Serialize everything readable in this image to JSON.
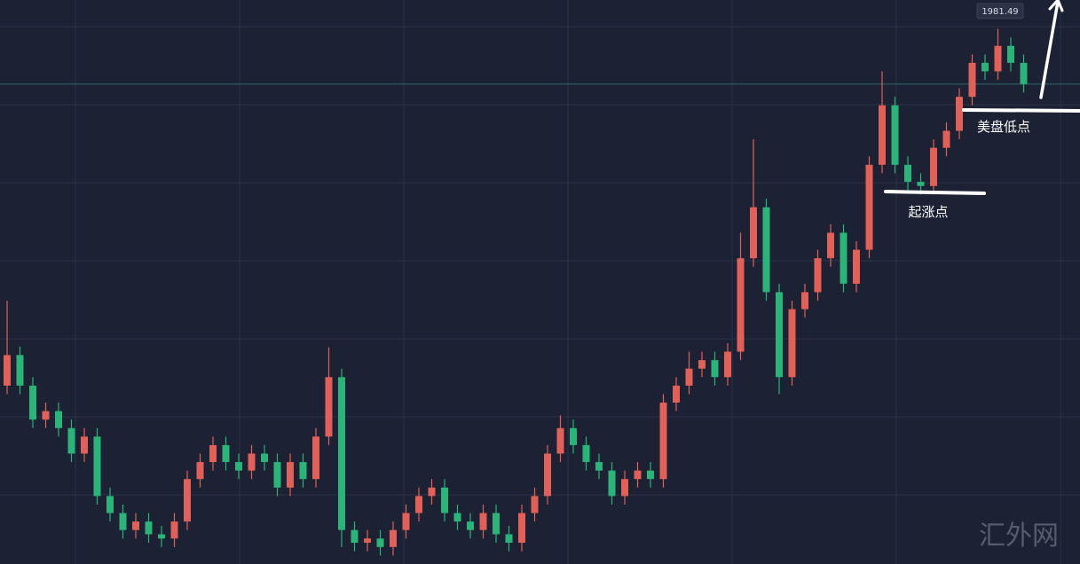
{
  "chart_data": {
    "type": "candlestick",
    "ylim": [
      1925,
      1991.4
    ],
    "price_line": 1981.49,
    "up_color": "#e0605a",
    "down_color": "#2bb37a",
    "annotations": [
      "起涨点",
      "美盘低点"
    ],
    "watermark": "汇外网",
    "open": [
      1946,
      1949.6,
      1946,
      1942,
      1943,
      1941,
      1938,
      1940,
      1933,
      1931,
      1929,
      1930,
      1928.5,
      1928,
      1930,
      1935,
      1937,
      1939,
      1937,
      1936,
      1938,
      1937,
      1934,
      1937,
      1935,
      1940,
      1947,
      1929,
      1927.5,
      1928,
      1927,
      1929,
      1931,
      1933,
      1934,
      1931,
      1930,
      1929,
      1931,
      1928.5,
      1927.5,
      1931,
      1933,
      1938,
      1941,
      1939,
      1937,
      1936,
      1933,
      1935,
      1936,
      1935,
      1944,
      1946,
      1948,
      1949,
      1947,
      1950,
      1961,
      1967,
      1957,
      1947,
      1955,
      1957,
      1961,
      1964,
      1958,
      1962,
      1972,
      1979,
      1972,
      1970,
      1969.5,
      1974,
      1976,
      1980,
      1984,
      1983,
      1986,
      1984
    ],
    "high": [
      1956,
      1950.6,
      1947,
      1944,
      1944,
      1942,
      1941,
      1941,
      1934,
      1932,
      1931,
      1931,
      1929.5,
      1931,
      1936,
      1938,
      1940,
      1940,
      1938,
      1939,
      1939,
      1938,
      1938,
      1938,
      1941,
      1950.5,
      1948,
      1930,
      1929,
      1929,
      1930,
      1932,
      1934,
      1935,
      1935,
      1932,
      1931,
      1932,
      1932,
      1929.5,
      1932,
      1934,
      1939,
      1942.5,
      1942,
      1940,
      1938,
      1937,
      1936,
      1937,
      1937,
      1945,
      1947,
      1950,
      1950,
      1950,
      1951,
      1964,
      1975,
      1968,
      1958,
      1956,
      1958,
      1962,
      1965,
      1965,
      1963,
      1973,
      1983,
      1980,
      1973,
      1971,
      1975,
      1977,
      1981,
      1985,
      1985,
      1988,
      1987,
      1985
    ],
    "low": [
      1945,
      1945,
      1941,
      1941,
      1940,
      1937,
      1937,
      1932,
      1930,
      1928,
      1928,
      1927.5,
      1927,
      1927,
      1929,
      1934,
      1936,
      1936,
      1935,
      1935,
      1936,
      1933,
      1933,
      1934,
      1934,
      1939,
      1927,
      1926.5,
      1926.5,
      1926,
      1926,
      1928,
      1930,
      1932,
      1930,
      1929,
      1928,
      1928,
      1927.5,
      1926.5,
      1926.5,
      1930,
      1932,
      1937,
      1938,
      1936,
      1935,
      1932,
      1932,
      1934,
      1934,
      1934,
      1943,
      1945,
      1947,
      1946,
      1946,
      1949,
      1960,
      1956,
      1945,
      1946,
      1954,
      1956,
      1960,
      1957,
      1957,
      1961,
      1971,
      1971,
      1969,
      1968.5,
      1968.5,
      1973,
      1975,
      1979,
      1982,
      1982,
      1983,
      1980.5
    ],
    "close": [
      1949.6,
      1946,
      1942,
      1943,
      1941,
      1938,
      1940,
      1933,
      1931,
      1929,
      1930,
      1928.5,
      1928,
      1930,
      1935,
      1937,
      1939,
      1937,
      1936,
      1938,
      1937,
      1934,
      1937,
      1935,
      1940,
      1947,
      1929,
      1927.5,
      1928,
      1927,
      1929,
      1931,
      1933,
      1934,
      1931,
      1930,
      1929,
      1931,
      1928.5,
      1927.5,
      1931,
      1933,
      1938,
      1941,
      1939,
      1937,
      1936,
      1933,
      1935,
      1936,
      1935,
      1944,
      1946,
      1948,
      1949,
      1947,
      1950,
      1961,
      1967,
      1957,
      1947,
      1955,
      1957,
      1961,
      1964,
      1958,
      1962,
      1972,
      1979,
      1972,
      1970,
      1969.5,
      1974,
      1976,
      1980,
      1984,
      1983,
      1986,
      1984,
      1981.5
    ]
  }
}
